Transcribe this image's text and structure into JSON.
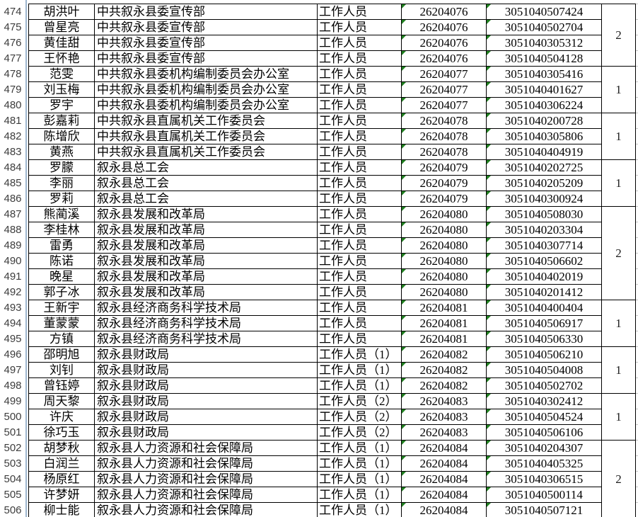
{
  "colors": {
    "border": "#000000",
    "row_header_separator": "#9EB6CE",
    "flag_green": "#208020",
    "gridline_tick": "#C9C9C9",
    "row_number_text": "#3D3D3D",
    "cell_text": "#000000"
  },
  "icons": {
    "corner_flag": "green-triangle-number-as-text-flag"
  },
  "table": {
    "rows": [
      {
        "no": "474",
        "name": "胡洪叶",
        "org": "中共叙永县委宣传部",
        "position": "工作人员",
        "code1": "26204076",
        "code2": "3051040507424"
      },
      {
        "no": "475",
        "name": "曾星亮",
        "org": "中共叙永县委宣传部",
        "position": "工作人员",
        "code1": "26204076",
        "code2": "3051040502704"
      },
      {
        "no": "476",
        "name": "黄佳甜",
        "org": "中共叙永县委宣传部",
        "position": "工作人员",
        "code1": "26204076",
        "code2": "3051040305312"
      },
      {
        "no": "477",
        "name": "王怀艳",
        "org": "中共叙永县委宣传部",
        "position": "工作人员",
        "code1": "26204076",
        "code2": "3051040504128"
      },
      {
        "no": "478",
        "name": "范雯",
        "org": "中共叙永县委机构编制委员会办公室",
        "position": "工作人员",
        "code1": "26204077",
        "code2": "3051040305416"
      },
      {
        "no": "479",
        "name": "刘玉梅",
        "org": "中共叙永县委机构编制委员会办公室",
        "position": "工作人员",
        "code1": "26204077",
        "code2": "3051040401627"
      },
      {
        "no": "480",
        "name": "罗宇",
        "org": "中共叙永县委机构编制委员会办公室",
        "position": "工作人员",
        "code1": "26204077",
        "code2": "3051040306224"
      },
      {
        "no": "481",
        "name": "彭嘉莉",
        "org": "中共叙永县直属机关工作委员会",
        "position": "工作人员",
        "code1": "26204078",
        "code2": "3051040200728"
      },
      {
        "no": "482",
        "name": "陈增欣",
        "org": "中共叙永县直属机关工作委员会",
        "position": "工作人员",
        "code1": "26204078",
        "code2": "3051040305806"
      },
      {
        "no": "483",
        "name": "黄燕",
        "org": "中共叙永县直属机关工作委员会",
        "position": "工作人员",
        "code1": "26204078",
        "code2": "3051040404919"
      },
      {
        "no": "484",
        "name": "罗朦",
        "org": "叙永县总工会",
        "position": "工作人员",
        "code1": "26204079",
        "code2": "3051040202725"
      },
      {
        "no": "485",
        "name": "李丽",
        "org": "叙永县总工会",
        "position": "工作人员",
        "code1": "26204079",
        "code2": "3051040205209"
      },
      {
        "no": "486",
        "name": "罗莉",
        "org": "叙永县总工会",
        "position": "工作人员",
        "code1": "26204079",
        "code2": "3051040300924"
      },
      {
        "no": "487",
        "name": "熊蔺溪",
        "org": "叙永县发展和改革局",
        "position": "工作人员",
        "code1": "26204080",
        "code2": "3051040508030"
      },
      {
        "no": "488",
        "name": "李桂林",
        "org": "叙永县发展和改革局",
        "position": "工作人员",
        "code1": "26204080",
        "code2": "3051040203304"
      },
      {
        "no": "489",
        "name": "雷勇",
        "org": "叙永县发展和改革局",
        "position": "工作人员",
        "code1": "26204080",
        "code2": "3051040307714"
      },
      {
        "no": "490",
        "name": "陈诺",
        "org": "叙永县发展和改革局",
        "position": "工作人员",
        "code1": "26204080",
        "code2": "3051040506602"
      },
      {
        "no": "491",
        "name": "晚星",
        "org": "叙永县发展和改革局",
        "position": "工作人员",
        "code1": "26204080",
        "code2": "3051040402019"
      },
      {
        "no": "492",
        "name": "郭子冰",
        "org": "叙永县发展和改革局",
        "position": "工作人员",
        "code1": "26204080",
        "code2": "3051040201412"
      },
      {
        "no": "493",
        "name": "王新宇",
        "org": "叙永县经济商务科学技术局",
        "position": "工作人员",
        "code1": "26204081",
        "code2": "3051040400404"
      },
      {
        "no": "494",
        "name": "董蒙蒙",
        "org": "叙永县经济商务科学技术局",
        "position": "工作人员",
        "code1": "26204081",
        "code2": "3051040506917"
      },
      {
        "no": "495",
        "name": "方镇",
        "org": "叙永县经济商务科学技术局",
        "position": "工作人员",
        "code1": "26204081",
        "code2": "3051040506330"
      },
      {
        "no": "496",
        "name": "邵明旭",
        "org": "叙永县财政局",
        "position": "工作人员（1）",
        "code1": "26204082",
        "code2": "3051040506210"
      },
      {
        "no": "497",
        "name": "刘钊",
        "org": "叙永县财政局",
        "position": "工作人员（1）",
        "code1": "26204082",
        "code2": "3051040504008"
      },
      {
        "no": "498",
        "name": "曾钰婷",
        "org": "叙永县财政局",
        "position": "工作人员（1）",
        "code1": "26204082",
        "code2": "3051040502702"
      },
      {
        "no": "499",
        "name": "周天黎",
        "org": "叙永县财政局",
        "position": "工作人员（2）",
        "code1": "26204083",
        "code2": "3051040302412"
      },
      {
        "no": "500",
        "name": "许庆",
        "org": "叙永县财政局",
        "position": "工作人员（2）",
        "code1": "26204083",
        "code2": "3051040504524"
      },
      {
        "no": "501",
        "name": "徐巧玉",
        "org": "叙永县财政局",
        "position": "工作人员（2）",
        "code1": "26204083",
        "code2": "3051040506106"
      },
      {
        "no": "502",
        "name": "胡梦秋",
        "org": "叙永县人力资源和社会保障局",
        "position": "工作人员（1）",
        "code1": "26204084",
        "code2": "3051040204307"
      },
      {
        "no": "503",
        "name": "白润兰",
        "org": "叙永县人力资源和社会保障局",
        "position": "工作人员（1）",
        "code1": "26204084",
        "code2": "3051040405325"
      },
      {
        "no": "504",
        "name": "杨原红",
        "org": "叙永县人力资源和社会保障局",
        "position": "工作人员（1）",
        "code1": "26204084",
        "code2": "3051040306515"
      },
      {
        "no": "505",
        "name": "许梦妍",
        "org": "叙永县人力资源和社会保障局",
        "position": "工作人员（1）",
        "code1": "26204084",
        "code2": "3051040500114"
      },
      {
        "no": "506",
        "name": "柳士能",
        "org": "叙永县人力资源和社会保障局",
        "position": "工作人员（1）",
        "code1": "26204084",
        "code2": "3051040507121"
      }
    ],
    "groups": [
      {
        "start_index": 0,
        "rows": 4,
        "count": "2"
      },
      {
        "start_index": 4,
        "rows": 3,
        "count": "1"
      },
      {
        "start_index": 7,
        "rows": 3,
        "count": "1"
      },
      {
        "start_index": 10,
        "rows": 3,
        "count": "1"
      },
      {
        "start_index": 13,
        "rows": 6,
        "count": "2"
      },
      {
        "start_index": 19,
        "rows": 3,
        "count": "1"
      },
      {
        "start_index": 22,
        "rows": 3,
        "count": "1"
      },
      {
        "start_index": 25,
        "rows": 3,
        "count": "1"
      },
      {
        "start_index": 28,
        "rows": 5,
        "count": "2"
      }
    ]
  }
}
